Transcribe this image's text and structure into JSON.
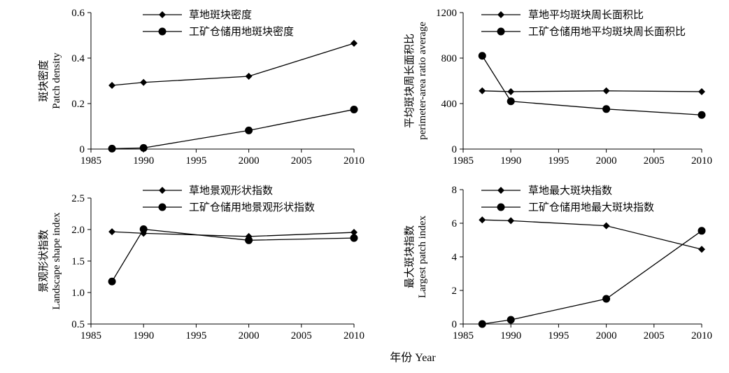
{
  "figure": {
    "x_axis_title": "年份 Year"
  },
  "chart_data": [
    {
      "type": "line",
      "ylabel_cn": "斑块密度",
      "ylabel_en": "Patch density",
      "x": [
        1987,
        1990,
        2000,
        2010
      ],
      "xticks": [
        1985,
        1990,
        1995,
        2000,
        2005,
        2010
      ],
      "xlim": [
        1985,
        2010
      ],
      "ylim": [
        0,
        0.6
      ],
      "yticks": [
        0,
        0.2,
        0.4,
        0.6
      ],
      "ytick_labels": [
        "0",
        "0.2",
        "0.4",
        "0.6"
      ],
      "legend_position": "top",
      "series": [
        {
          "name": "草地斑块密度",
          "marker": "diamond",
          "values": [
            0.28,
            0.293,
            0.32,
            0.465
          ]
        },
        {
          "name": "工矿仓储用地斑块密度",
          "marker": "circle",
          "values": [
            0.002,
            0.005,
            0.082,
            0.174
          ]
        }
      ]
    },
    {
      "type": "line",
      "ylabel_cn": "平均斑块周长面积比",
      "ylabel_en": "perimeter-area ratio average",
      "x": [
        1987,
        1990,
        2000,
        2010
      ],
      "xticks": [
        1985,
        1990,
        1995,
        2000,
        2005,
        2010
      ],
      "xlim": [
        1985,
        2010
      ],
      "ylim": [
        0,
        1200
      ],
      "yticks": [
        0,
        400,
        800,
        1200
      ],
      "ytick_labels": [
        "0",
        "400",
        "800",
        "1200"
      ],
      "legend_position": "top",
      "series": [
        {
          "name": "草地平均斑块周长面积比",
          "marker": "diamond",
          "values": [
            512,
            505,
            512,
            505
          ]
        },
        {
          "name": "工矿仓储用地平均斑块周长面积比",
          "marker": "circle",
          "values": [
            820,
            420,
            352,
            300
          ]
        }
      ]
    },
    {
      "type": "line",
      "ylabel_cn": "景观形状指数",
      "ylabel_en": "Landscape shape index",
      "x": [
        1987,
        1990,
        2000,
        2010
      ],
      "xticks": [
        1985,
        1990,
        1995,
        2000,
        2005,
        2010
      ],
      "xlim": [
        1985,
        2010
      ],
      "ylim": [
        0.5,
        2.5
      ],
      "yticks": [
        0.5,
        1.0,
        1.5,
        2.0,
        2.5
      ],
      "ytick_labels": [
        "0.5",
        "1.0",
        "1.5",
        "2.0",
        "2.5"
      ],
      "legend_position": "top",
      "series": [
        {
          "name": "草地景观形状指数",
          "marker": "diamond",
          "values": [
            1.965,
            1.94,
            1.89,
            1.955
          ]
        },
        {
          "name": "工矿仓储用地景观形状指数",
          "marker": "circle",
          "values": [
            1.175,
            2.005,
            1.83,
            1.865
          ]
        }
      ]
    },
    {
      "type": "line",
      "ylabel_cn": "最大斑块指数",
      "ylabel_en": "Largest patch index",
      "x": [
        1987,
        1990,
        2000,
        2010
      ],
      "xticks": [
        1985,
        1990,
        1995,
        2000,
        2005,
        2010
      ],
      "xlim": [
        1985,
        2010
      ],
      "ylim": [
        0,
        8
      ],
      "yticks": [
        0,
        2,
        4,
        6,
        8
      ],
      "ytick_labels": [
        "0",
        "2",
        "4",
        "6",
        "8"
      ],
      "legend_position": "top",
      "series": [
        {
          "name": "草地最大斑块指数",
          "marker": "diamond",
          "values": [
            6.2,
            6.15,
            5.85,
            4.45
          ]
        },
        {
          "name": "工矿仓储用地最大斑块指数",
          "marker": "circle",
          "values": [
            0.0,
            0.25,
            1.5,
            5.55
          ]
        }
      ]
    }
  ]
}
